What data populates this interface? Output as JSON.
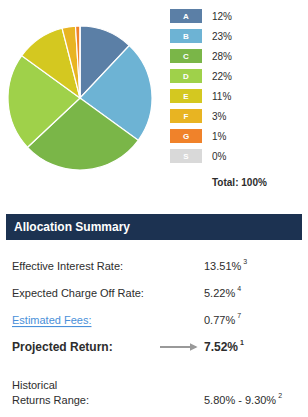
{
  "chart_data": {
    "type": "pie",
    "categories": [
      "A",
      "B",
      "C",
      "D",
      "E",
      "F",
      "G",
      "S"
    ],
    "values": [
      12,
      23,
      28,
      22,
      11,
      3,
      1,
      0
    ],
    "value_labels": [
      "12%",
      "23%",
      "28%",
      "22%",
      "11%",
      "3%",
      "1%",
      "0%"
    ],
    "colors": [
      "#5b7fa6",
      "#6db3d4",
      "#7ab648",
      "#9fd14a",
      "#d4c820",
      "#e8b422",
      "#f0822a",
      "#d9d9d9"
    ],
    "legend": "right",
    "annotations": [
      "Total: 100%"
    ]
  },
  "table": {
    "header": "Allocation Summary",
    "rows": [
      {
        "label": [
          "Effective Interest Rate:"
        ],
        "value": "13.51%",
        "note": "3",
        "bold": false,
        "link": false
      },
      {
        "label": [
          "Expected Charge Off Rate:"
        ],
        "value": "5.22%",
        "note": "4",
        "bold": false,
        "link": false
      },
      {
        "label": [
          "Estimated Fees:"
        ],
        "value": "0.77%",
        "note": "7",
        "bold": false,
        "link": true
      },
      {
        "label": [
          "Projected Return:"
        ],
        "value": "7.52%",
        "note": "1",
        "bold": true,
        "link": false
      },
      {
        "label": [
          "Historical",
          "Returns Range:"
        ],
        "value": "5.80% - 9.30%",
        "note": "2",
        "bold": false,
        "link": false
      }
    ]
  }
}
